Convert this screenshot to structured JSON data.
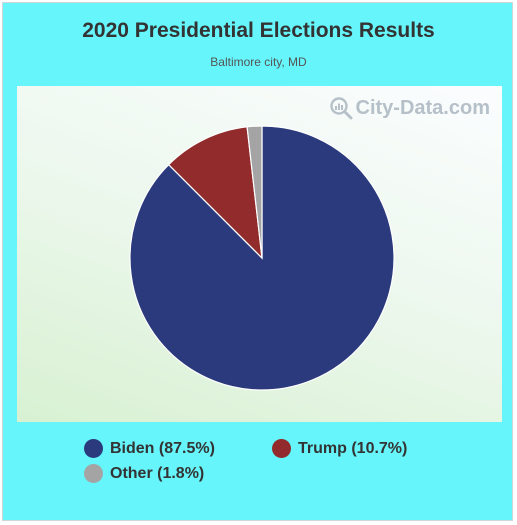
{
  "title": "2020 Presidential Elections Results",
  "subtitle": "Baltimore city, MD",
  "watermark": {
    "text": "City-Data.com",
    "icon": "magnifier-chart-icon"
  },
  "colors": {
    "frame": "#66f5fb",
    "biden": "#2b3a7c",
    "trump": "#922c2c",
    "other": "#a4a4a4"
  },
  "chart_data": {
    "type": "pie",
    "title": "2020 Presidential Elections Results",
    "subtitle": "Baltimore city, MD",
    "slices": [
      {
        "name": "Biden",
        "value": 87.5,
        "color": "#2b3a7c"
      },
      {
        "name": "Trump",
        "value": 10.7,
        "color": "#922c2c"
      },
      {
        "name": "Other",
        "value": 1.8,
        "color": "#a4a4a4"
      }
    ],
    "legend_position": "bottom",
    "legend": [
      {
        "label": "Biden (87.5%)",
        "color": "#2b3a7c"
      },
      {
        "label": "Trump (10.7%)",
        "color": "#922c2c"
      },
      {
        "label": "Other (1.8%)",
        "color": "#a4a4a4"
      }
    ]
  }
}
